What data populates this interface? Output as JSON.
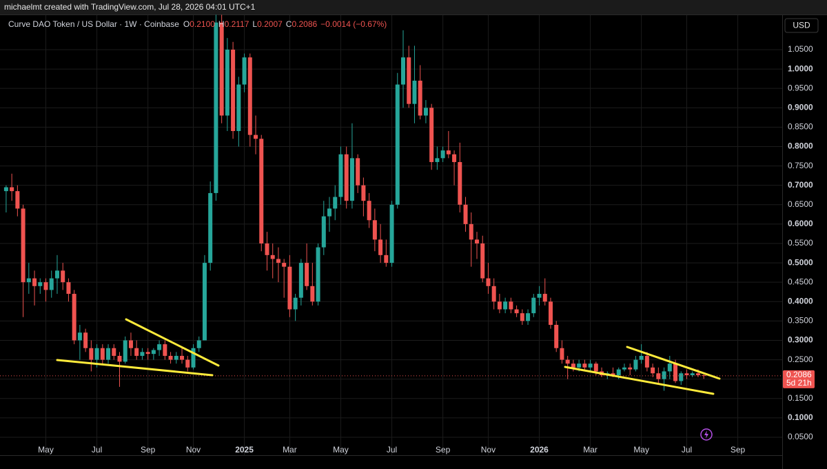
{
  "header": {
    "attribution": "michaelmt created with TradingView.com, Jul 28, 2026 04:01 UTC+1",
    "currency": "USD"
  },
  "chart_data": {
    "type": "candlestick",
    "symbol": "Curve DAO Token / US Dollar · 1W · Coinbase",
    "ohlc_legend": [
      {
        "key": "O",
        "value": "0.2100"
      },
      {
        "key": "H",
        "value": "0.2117"
      },
      {
        "key": "L",
        "value": "0.2007"
      },
      {
        "key": "C",
        "value": "0.2086"
      }
    ],
    "change": "−0.0014 (−0.67%)",
    "last_price_label": "0.2086",
    "countdown": "5d 21h",
    "up_color": "#26a69a",
    "down_color": "#ef5350",
    "grid": true,
    "categories": [
      null,
      null,
      null,
      null,
      null,
      null,
      null,
      "May",
      null,
      null,
      null,
      null,
      null,
      null,
      null,
      null,
      "Jul",
      null,
      null,
      null,
      null,
      null,
      null,
      null,
      null,
      "Sep",
      null,
      null,
      null,
      null,
      null,
      null,
      null,
      "Nov",
      null,
      null,
      null,
      null,
      null,
      null,
      null,
      null,
      "2025",
      null,
      null,
      null,
      null,
      null,
      null,
      null,
      "Mar",
      null,
      null,
      null,
      null,
      null,
      null,
      null,
      null,
      "May",
      null,
      null,
      null,
      null,
      null,
      null,
      null,
      null,
      "Jul",
      null,
      null,
      null,
      null,
      null,
      null,
      null,
      null,
      "Sep",
      null,
      null,
      null,
      null,
      null,
      null,
      null,
      "Nov",
      null,
      null,
      null,
      null,
      null,
      null,
      null,
      null,
      "2026",
      null,
      null,
      null,
      null,
      null,
      null,
      null,
      null,
      "Mar",
      null,
      null,
      null,
      null,
      null,
      null,
      null,
      null,
      "May",
      null,
      null,
      null,
      null,
      null,
      null,
      null,
      "Jul",
      null,
      null,
      null,
      null,
      null,
      null,
      null,
      null,
      "Sep"
    ],
    "open": [
      0.685,
      0.695,
      0.685,
      0.64,
      0.45,
      0.46,
      0.44,
      0.45,
      0.43,
      0.46,
      0.48,
      0.45,
      0.42,
      0.3,
      0.32,
      0.28,
      0.25,
      0.28,
      0.25,
      0.28,
      0.26,
      0.245,
      0.3,
      0.28,
      0.26,
      0.27,
      0.265,
      0.275,
      0.29,
      0.26,
      0.25,
      0.26,
      0.25,
      0.23,
      0.28,
      0.3,
      0.5,
      0.68,
      1.12,
      0.88,
      1.05,
      0.84,
      0.96,
      1.03,
      0.83,
      0.82,
      0.55,
      0.52,
      0.51,
      0.5,
      0.49,
      0.38,
      0.41,
      0.5,
      0.44,
      0.4,
      0.54,
      0.62,
      0.64,
      0.67,
      0.78,
      0.66,
      0.77,
      0.7,
      0.66,
      0.61,
      0.56,
      0.52,
      0.5,
      0.65,
      0.96,
      1.03,
      0.91,
      0.97,
      0.88,
      0.9,
      0.76,
      0.77,
      0.79,
      0.78,
      0.76,
      0.65,
      0.6,
      0.56,
      0.55,
      0.46,
      0.44,
      0.4,
      0.38,
      0.4,
      0.38,
      0.37,
      0.35,
      0.37,
      0.41,
      0.42,
      0.4,
      0.34,
      0.28,
      0.25,
      0.24,
      0.23,
      0.24,
      0.23,
      0.24,
      0.22,
      0.21,
      0.215,
      0.21,
      0.225,
      0.23,
      0.225,
      0.25,
      0.26,
      0.23,
      0.215,
      0.2,
      0.22,
      0.24,
      0.195,
      0.215,
      0.21,
      0.215,
      0.21,
      null,
      null,
      null,
      null,
      null,
      null
    ],
    "high": [
      0.7,
      0.73,
      0.7,
      0.65,
      0.5,
      0.48,
      0.46,
      0.46,
      0.48,
      0.52,
      0.5,
      0.46,
      0.43,
      0.34,
      0.33,
      0.3,
      0.29,
      0.29,
      0.29,
      0.29,
      0.27,
      0.31,
      0.32,
      0.3,
      0.28,
      0.28,
      0.28,
      0.3,
      0.3,
      0.27,
      0.27,
      0.28,
      0.26,
      0.29,
      0.31,
      0.52,
      0.71,
      1.14,
      1.14,
      1.08,
      1.07,
      0.98,
      1.04,
      1.04,
      0.88,
      0.83,
      0.58,
      0.55,
      0.54,
      0.51,
      0.52,
      0.42,
      0.51,
      0.55,
      0.5,
      0.55,
      0.66,
      0.67,
      0.7,
      0.8,
      0.8,
      0.86,
      0.78,
      0.72,
      0.68,
      0.64,
      0.6,
      0.56,
      0.66,
      0.99,
      1.1,
      1.06,
      1.06,
      1.01,
      0.92,
      0.91,
      0.8,
      0.8,
      0.84,
      0.79,
      0.81,
      0.67,
      0.63,
      0.58,
      0.57,
      0.5,
      0.46,
      0.42,
      0.41,
      0.41,
      0.39,
      0.38,
      0.38,
      0.42,
      0.44,
      0.46,
      0.41,
      0.35,
      0.3,
      0.26,
      0.25,
      0.25,
      0.25,
      0.25,
      0.245,
      0.23,
      0.22,
      0.23,
      0.23,
      0.24,
      0.24,
      0.26,
      0.29,
      0.27,
      0.24,
      0.23,
      0.23,
      0.26,
      0.25,
      0.22,
      0.225,
      0.22,
      0.225,
      0.2117,
      null,
      null,
      null,
      null,
      null,
      null
    ],
    "low": [
      0.63,
      0.66,
      0.62,
      0.36,
      0.42,
      0.39,
      0.42,
      0.4,
      0.41,
      0.42,
      0.43,
      0.4,
      0.29,
      0.25,
      0.27,
      0.22,
      0.23,
      0.24,
      0.24,
      0.25,
      0.18,
      0.24,
      0.26,
      0.25,
      0.25,
      0.25,
      0.25,
      0.26,
      0.25,
      0.24,
      0.24,
      0.24,
      0.22,
      0.225,
      0.27,
      0.3,
      0.48,
      0.66,
      0.86,
      0.84,
      0.82,
      0.8,
      0.94,
      0.8,
      0.78,
      0.53,
      0.48,
      0.46,
      0.45,
      0.41,
      0.36,
      0.35,
      0.39,
      0.43,
      0.39,
      0.39,
      0.52,
      0.58,
      0.61,
      0.65,
      0.64,
      0.64,
      0.68,
      0.62,
      0.59,
      0.53,
      0.5,
      0.49,
      0.49,
      0.64,
      0.9,
      0.9,
      0.86,
      0.87,
      0.86,
      0.74,
      0.74,
      0.76,
      0.77,
      0.7,
      0.63,
      0.58,
      0.49,
      0.51,
      0.45,
      0.42,
      0.38,
      0.37,
      0.37,
      0.37,
      0.36,
      0.34,
      0.34,
      0.36,
      0.39,
      0.39,
      0.33,
      0.27,
      0.24,
      0.2,
      0.22,
      0.22,
      0.22,
      0.22,
      0.21,
      0.205,
      0.2,
      0.205,
      0.2,
      0.22,
      0.21,
      0.22,
      0.24,
      0.22,
      0.205,
      0.19,
      0.17,
      0.2,
      0.19,
      0.185,
      0.2,
      0.205,
      0.205,
      0.2007,
      null,
      null,
      null,
      null,
      null,
      null
    ],
    "close": [
      0.695,
      0.685,
      0.64,
      0.45,
      0.46,
      0.44,
      0.45,
      0.43,
      0.46,
      0.48,
      0.45,
      0.42,
      0.3,
      0.32,
      0.28,
      0.25,
      0.28,
      0.25,
      0.28,
      0.26,
      0.245,
      0.3,
      0.28,
      0.26,
      0.27,
      0.265,
      0.275,
      0.29,
      0.26,
      0.25,
      0.26,
      0.25,
      0.23,
      0.28,
      0.3,
      0.5,
      0.68,
      1.12,
      0.88,
      1.05,
      0.84,
      0.96,
      1.03,
      0.83,
      0.82,
      0.55,
      0.52,
      0.51,
      0.5,
      0.49,
      0.38,
      0.41,
      0.5,
      0.44,
      0.4,
      0.54,
      0.62,
      0.64,
      0.67,
      0.78,
      0.66,
      0.77,
      0.7,
      0.66,
      0.61,
      0.56,
      0.52,
      0.5,
      0.65,
      0.96,
      1.03,
      0.91,
      0.97,
      0.88,
      0.9,
      0.76,
      0.77,
      0.79,
      0.78,
      0.76,
      0.65,
      0.6,
      0.56,
      0.55,
      0.46,
      0.44,
      0.4,
      0.38,
      0.4,
      0.38,
      0.37,
      0.35,
      0.37,
      0.41,
      0.42,
      0.4,
      0.34,
      0.28,
      0.25,
      0.24,
      0.23,
      0.24,
      0.23,
      0.24,
      0.22,
      0.21,
      0.215,
      0.21,
      0.225,
      0.23,
      0.225,
      0.25,
      0.26,
      0.23,
      0.215,
      0.2,
      0.22,
      0.24,
      0.195,
      0.215,
      0.21,
      0.215,
      0.21,
      0.2086,
      null,
      null,
      null,
      null,
      null,
      null
    ],
    "ylim": [
      0.0037,
      1.1425
    ],
    "yticks": [
      {
        "value": 0.05,
        "label": "0.0500"
      },
      {
        "value": 0.1,
        "label": "0.1000"
      },
      {
        "value": 0.15,
        "label": "0.1500"
      },
      {
        "value": 0.2,
        "label": "0.2000"
      },
      {
        "value": 0.25,
        "label": "0.2500"
      },
      {
        "value": 0.3,
        "label": "0.3000"
      },
      {
        "value": 0.35,
        "label": "0.3500"
      },
      {
        "value": 0.4,
        "label": "0.4000"
      },
      {
        "value": 0.45,
        "label": "0.4500"
      },
      {
        "value": 0.5,
        "label": "0.5000"
      },
      {
        "value": 0.55,
        "label": "0.5500"
      },
      {
        "value": 0.6,
        "label": "0.6000"
      },
      {
        "value": 0.65,
        "label": "0.6500"
      },
      {
        "value": 0.7,
        "label": "0.7000"
      },
      {
        "value": 0.75,
        "label": "0.7500"
      },
      {
        "value": 0.8,
        "label": "0.8000"
      },
      {
        "value": 0.85,
        "label": "0.8500"
      },
      {
        "value": 0.9,
        "label": "0.9000"
      },
      {
        "value": 0.95,
        "label": "0.9500"
      },
      {
        "value": 1,
        "label": "1.0000"
      },
      {
        "value": 1.05,
        "label": "1.0500"
      }
    ]
  }
}
